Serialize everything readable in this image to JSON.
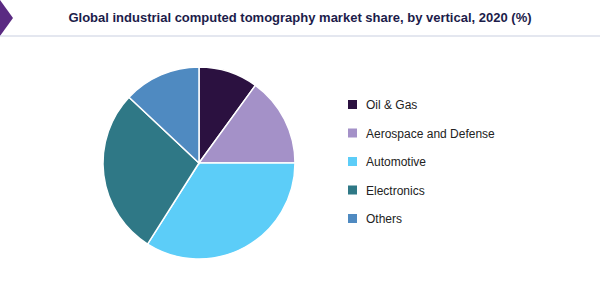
{
  "chart_data": {
    "type": "pie",
    "title": "Global industrial computed tomography market share, by vertical, 2020 (%)",
    "categories": [
      "Oil & Gas",
      "Aerospace and Defense",
      "Automotive",
      "Electronics",
      "Others"
    ],
    "values": [
      10,
      15,
      34,
      28,
      13
    ],
    "colors": [
      "#2b1140",
      "#a491c8",
      "#5ccdf8",
      "#2f7886",
      "#4f8ac1"
    ],
    "legend": "right"
  }
}
